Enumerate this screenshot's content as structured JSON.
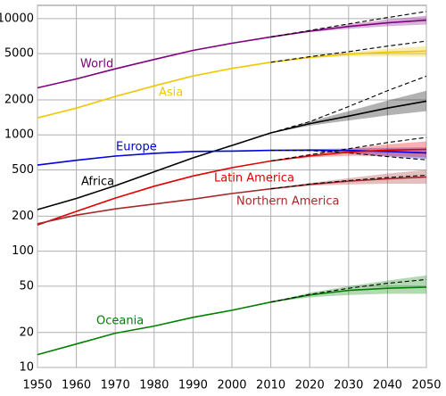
{
  "chart_data": {
    "type": "line",
    "log_y": true,
    "grid": true,
    "x": [
      1950,
      1960,
      1970,
      1980,
      1990,
      2000,
      2010,
      2020,
      2030,
      2040,
      2050
    ],
    "xlim": [
      1950,
      2050
    ],
    "xticks": [
      1950,
      1960,
      1970,
      1980,
      1990,
      2000,
      2010,
      2020,
      2030,
      2040,
      2050
    ],
    "ylim": [
      10,
      13000
    ],
    "yticks": [
      10,
      20,
      50,
      100,
      200,
      500,
      1000,
      2000,
      5000,
      10000
    ],
    "series": [
      {
        "name": "World",
        "color": "#800080",
        "values": [
          2536,
          3030,
          3700,
          4450,
          5330,
          6140,
          6960,
          7800,
          8550,
          9200,
          9700
        ],
        "high": [
          null,
          null,
          null,
          null,
          null,
          null,
          6960,
          7900,
          9000,
          10200,
          11500
        ],
        "lower": [
          null,
          null,
          null,
          null,
          null,
          null,
          6960,
          7650,
          8150,
          8600,
          8900
        ],
        "upper": [
          null,
          null,
          null,
          null,
          null,
          null,
          6960,
          7950,
          8950,
          9850,
          10600
        ]
      },
      {
        "name": "Asia",
        "color": "#f0c800",
        "values": [
          1400,
          1700,
          2140,
          2640,
          3210,
          3730,
          4210,
          4640,
          4950,
          5150,
          5250
        ],
        "high": [
          null,
          null,
          null,
          null,
          null,
          null,
          4210,
          4700,
          5200,
          5800,
          6400
        ],
        "lower": [
          null,
          null,
          null,
          null,
          null,
          null,
          4210,
          4550,
          4750,
          4750,
          4700
        ],
        "upper": [
          null,
          null,
          null,
          null,
          null,
          null,
          4210,
          4730,
          5150,
          5500,
          5800
        ]
      },
      {
        "name": "Africa",
        "color": "#000000",
        "values": [
          228,
          284,
          366,
          482,
          634,
          811,
          1040,
          1250,
          1450,
          1700,
          1950
        ],
        "high": [
          null,
          null,
          null,
          null,
          null,
          null,
          1040,
          1300,
          1750,
          2400,
          3200
        ],
        "lower": [
          null,
          null,
          null,
          null,
          null,
          null,
          1040,
          1200,
          1330,
          1470,
          1600
        ],
        "upper": [
          null,
          null,
          null,
          null,
          null,
          null,
          1040,
          1300,
          1600,
          1970,
          2400
        ]
      },
      {
        "name": "Europe",
        "color": "#0000e0",
        "values": [
          550,
          605,
          657,
          694,
          721,
          726,
          736,
          740,
          735,
          720,
          700
        ],
        "high": [
          null,
          null,
          null,
          null,
          null,
          null,
          736,
          735,
          700,
          650,
          610
        ],
        "lower": [
          null,
          null,
          null,
          null,
          null,
          null,
          736,
          725,
          690,
          650,
          620
        ],
        "upper": [
          null,
          null,
          null,
          null,
          null,
          null,
          736,
          755,
          765,
          775,
          780
        ]
      },
      {
        "name": "Latin America",
        "color": "#e00000",
        "values": [
          168,
          220,
          286,
          362,
          443,
          522,
          596,
          660,
          710,
          740,
          750
        ],
        "high": [
          null,
          null,
          null,
          null,
          null,
          null,
          596,
          675,
          760,
          860,
          950
        ],
        "lower": [
          null,
          null,
          null,
          null,
          null,
          null,
          596,
          640,
          660,
          660,
          640
        ],
        "upper": [
          null,
          null,
          null,
          null,
          null,
          null,
          596,
          680,
          760,
          830,
          880
        ]
      },
      {
        "name": "Northern America",
        "color": "#a52a2a",
        "values": [
          172,
          204,
          231,
          254,
          280,
          313,
          344,
          375,
          400,
          420,
          435
        ],
        "high": [
          null,
          null,
          null,
          null,
          null,
          null,
          344,
          378,
          405,
          430,
          450
        ],
        "lower": [
          null,
          null,
          null,
          null,
          null,
          null,
          344,
          365,
          375,
          380,
          380
        ],
        "upper": [
          null,
          null,
          null,
          null,
          null,
          null,
          344,
          385,
          425,
          465,
          500
        ]
      },
      {
        "name": "Oceania",
        "color": "#008000",
        "values": [
          12.9,
          15.9,
          19.7,
          22.7,
          27,
          31,
          36.5,
          42,
          46,
          48,
          49
        ],
        "high": [
          null,
          null,
          null,
          null,
          null,
          null,
          36.5,
          42.5,
          48,
          53,
          57
        ],
        "lower": [
          null,
          null,
          null,
          null,
          null,
          null,
          36.5,
          40,
          42,
          43,
          43
        ],
        "upper": [
          null,
          null,
          null,
          null,
          null,
          null,
          36.5,
          44,
          50,
          56,
          62
        ]
      }
    ]
  }
}
